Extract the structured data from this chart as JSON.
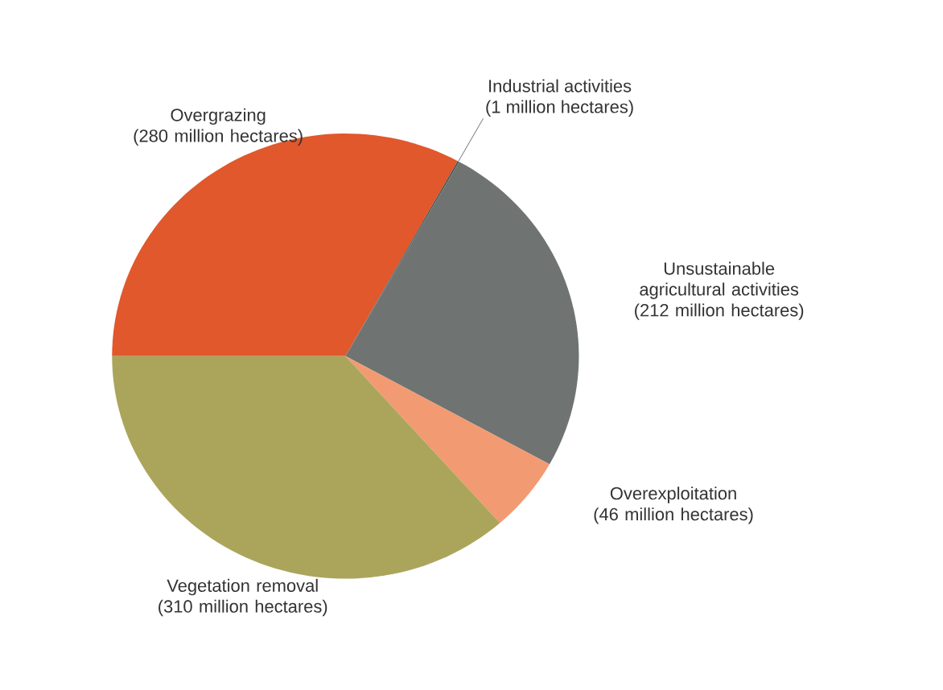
{
  "chart_data": {
    "type": "pie",
    "categories": [
      "Overgrazing",
      "Industrial activities",
      "Unsustainable agricultural activities",
      "Overexploitation",
      "Vegetation removal"
    ],
    "values": [
      280,
      1,
      212,
      46,
      310
    ],
    "value_labels": [
      "(280 million hectares)",
      "(1 million hectares)",
      "(212 million hectares)",
      "(46 million hectares)",
      "(310 million hectares)"
    ],
    "colors": [
      "#e0582c",
      "#4f5352",
      "#6f7472",
      "#f29a72",
      "#aba55c"
    ]
  }
}
